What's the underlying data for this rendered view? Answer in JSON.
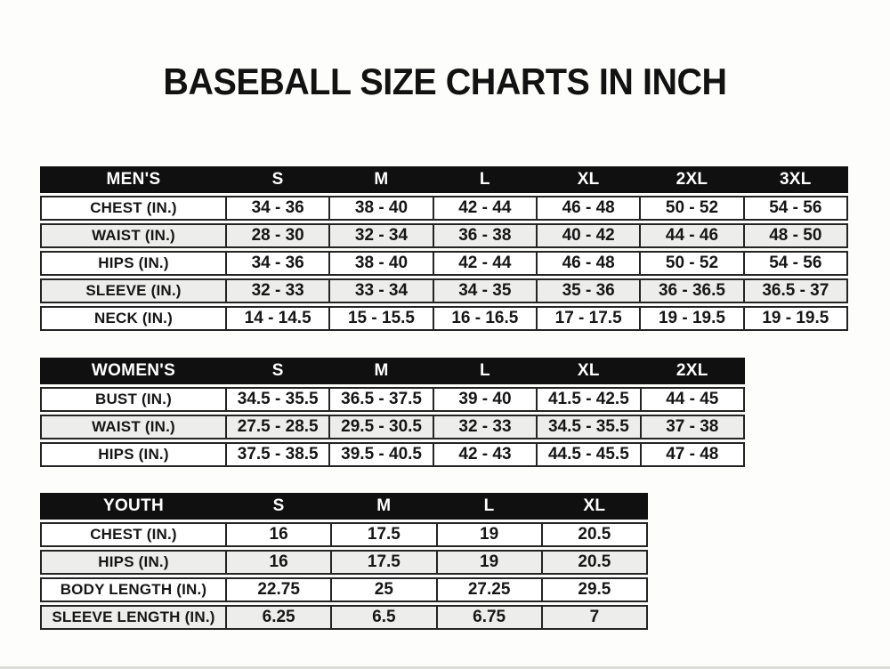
{
  "title": "BASEBALL SIZE CHARTS IN INCH",
  "colors": {
    "header_bg": "#101010",
    "header_text": "#ffffff",
    "row_bg": "#ffffff",
    "row_alt_bg": "#ededec",
    "border": "#242424",
    "text": "#161616",
    "page_bg": "#fdfdfc"
  },
  "chart_data": [
    {
      "type": "table",
      "group": "MEN'S",
      "columns": [
        "S",
        "M",
        "L",
        "XL",
        "2XL",
        "3XL"
      ],
      "rows": [
        {
          "label": "CHEST (IN.)",
          "values": [
            "34 - 36",
            "38 - 40",
            "42 - 44",
            "46 - 48",
            "50 - 52",
            "54 - 56"
          ]
        },
        {
          "label": "WAIST (IN.)",
          "values": [
            "28 - 30",
            "32 - 34",
            "36 - 38",
            "40 - 42",
            "44 - 46",
            "48 - 50"
          ]
        },
        {
          "label": "HIPS (IN.)",
          "values": [
            "34 - 36",
            "38 - 40",
            "42 - 44",
            "46 - 48",
            "50 - 52",
            "54 - 56"
          ]
        },
        {
          "label": "SLEEVE (IN.)",
          "values": [
            "32 - 33",
            "33 - 34",
            "34 - 35",
            "35 - 36",
            "36 - 36.5",
            "36.5 - 37"
          ]
        },
        {
          "label": "NECK (IN.)",
          "values": [
            "14 - 14.5",
            "15 - 15.5",
            "16 - 16.5",
            "17 - 17.5",
            "19 - 19.5",
            "19 - 19.5"
          ]
        }
      ]
    },
    {
      "type": "table",
      "group": "WOMEN'S",
      "columns": [
        "S",
        "M",
        "L",
        "XL",
        "2XL"
      ],
      "rows": [
        {
          "label": "BUST (IN.)",
          "values": [
            "34.5 - 35.5",
            "36.5 - 37.5",
            "39 - 40",
            "41.5 - 42.5",
            "44 - 45"
          ]
        },
        {
          "label": "WAIST (IN.)",
          "values": [
            "27.5 - 28.5",
            "29.5 - 30.5",
            "32 - 33",
            "34.5 - 35.5",
            "37 - 38"
          ]
        },
        {
          "label": "HIPS (IN.)",
          "values": [
            "37.5 - 38.5",
            "39.5 - 40.5",
            "42 - 43",
            "44.5 - 45.5",
            "47 - 48"
          ]
        }
      ]
    },
    {
      "type": "table",
      "group": "YOUTH",
      "columns": [
        "S",
        "M",
        "L",
        "XL"
      ],
      "rows": [
        {
          "label": "CHEST (IN.)",
          "values": [
            "16",
            "17.5",
            "19",
            "20.5"
          ]
        },
        {
          "label": "HIPS (IN.)",
          "values": [
            "16",
            "17.5",
            "19",
            "20.5"
          ]
        },
        {
          "label": "BODY LENGTH (IN.)",
          "values": [
            "22.75",
            "25",
            "27.25",
            "29.5"
          ]
        },
        {
          "label": "SLEEVE LENGTH (IN.)",
          "values": [
            "6.25",
            "6.5",
            "6.75",
            "7"
          ]
        }
      ]
    }
  ]
}
